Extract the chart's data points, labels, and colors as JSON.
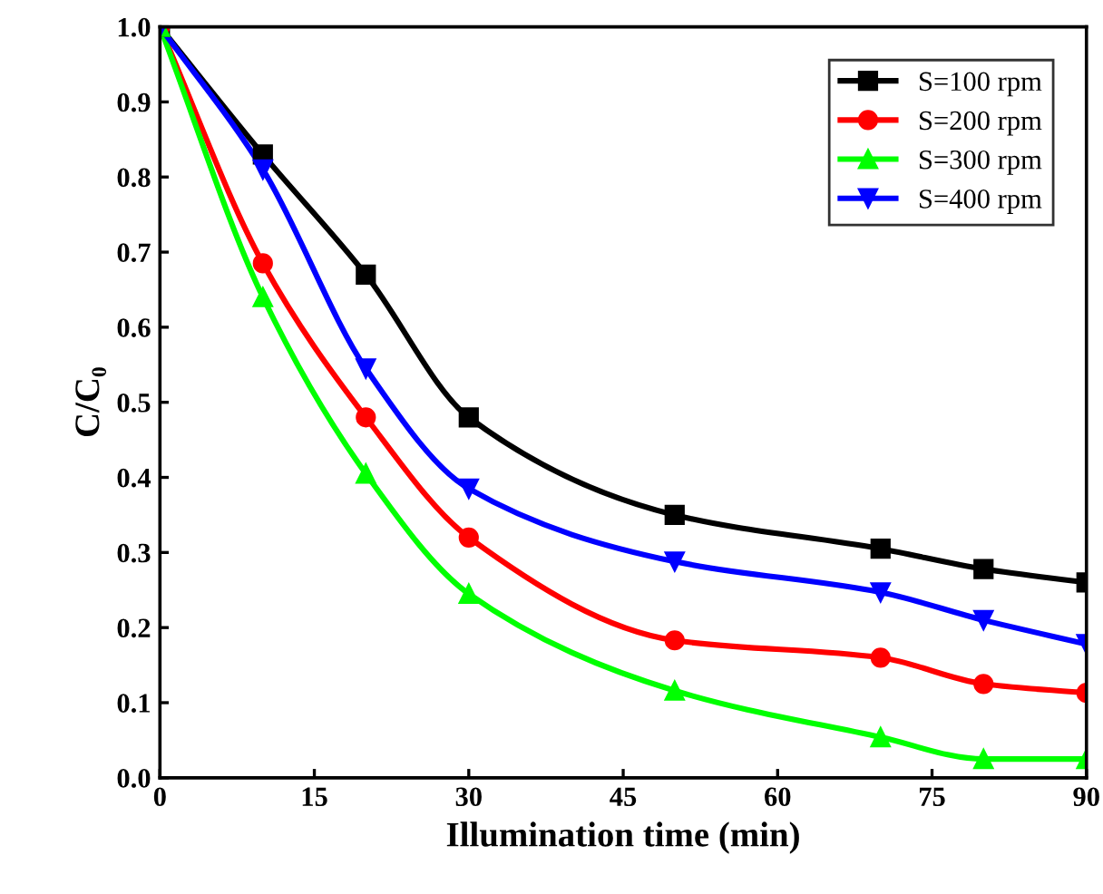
{
  "chart_data": {
    "type": "line",
    "xlabel": "Illumination time (min)",
    "ylabel": "C/C₀",
    "x": [
      0,
      10,
      20,
      30,
      50,
      70,
      80,
      90
    ],
    "series": [
      {
        "name": "S=100 rpm",
        "color": "#000000",
        "marker": "square",
        "values": [
          1.0,
          0.83,
          0.67,
          0.48,
          0.35,
          0.305,
          0.278,
          0.26
        ]
      },
      {
        "name": "S=200 rpm",
        "color": "#ff0000",
        "marker": "circle",
        "values": [
          1.0,
          0.685,
          0.48,
          0.32,
          0.183,
          0.16,
          0.125,
          0.113
        ]
      },
      {
        "name": "S=300 rpm",
        "color": "#00ff00",
        "marker": "triangle",
        "values": [
          1.0,
          0.64,
          0.405,
          0.245,
          0.116,
          0.054,
          0.025,
          0.025
        ]
      },
      {
        "name": "S=400 rpm",
        "color": "#0000ff",
        "marker": "triangle_down",
        "values": [
          1.0,
          0.81,
          0.545,
          0.385,
          0.288,
          0.247,
          0.21,
          0.178
        ]
      }
    ],
    "xlim": [
      0,
      90
    ],
    "xticks": [
      0,
      15,
      30,
      45,
      60,
      75,
      90
    ],
    "ylim": [
      0,
      1.0
    ],
    "yticks": [
      {
        "value": 0,
        "label": "0.0"
      },
      0.1,
      0.2,
      0.3,
      0.4,
      0.5,
      0.6,
      0.7,
      0.8,
      0.9,
      {
        "value": 1,
        "label": "1.0"
      }
    ],
    "grid": false,
    "legend": "top right",
    "line_style": "solid"
  }
}
